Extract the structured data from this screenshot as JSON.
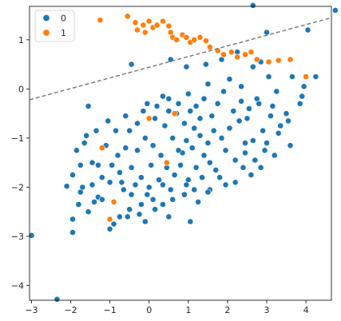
{
  "chart_data": {
    "type": "scatter",
    "title": "",
    "xlabel": "",
    "ylabel": "",
    "xlim": [
      -3.05,
      4.65
    ],
    "ylim": [
      -4.3,
      1.68
    ],
    "xticks": [
      -3,
      -2,
      -1,
      0,
      1,
      2,
      3,
      4
    ],
    "yticks": [
      -4,
      -3,
      -2,
      -1,
      0,
      1
    ],
    "xtick_labels": [
      "−3",
      "−2",
      "−1",
      "0",
      "1",
      "2",
      "3",
      "4"
    ],
    "ytick_labels": [
      "−4",
      "−3",
      "−2",
      "−1",
      "0",
      "1"
    ],
    "grid": false,
    "legend": {
      "location": "upper-left",
      "entries": [
        "0",
        "1"
      ]
    },
    "series": [
      {
        "name": "0",
        "color": "#1f77b4",
        "points": [
          [
            -3.0,
            -2.98
          ],
          [
            -2.35,
            -4.28
          ],
          [
            -1.95,
            -2.92
          ],
          [
            -1.95,
            -2.65
          ],
          [
            -2.1,
            -1.98
          ],
          [
            -1.8,
            -2.35
          ],
          [
            -1.75,
            -2.1
          ],
          [
            -1.55,
            -2.5
          ],
          [
            -1.4,
            -2.3
          ],
          [
            -1.3,
            -2.2
          ],
          [
            -1.2,
            -2.25
          ],
          [
            -1.0,
            -2.85
          ],
          [
            -0.9,
            -2.75
          ],
          [
            -0.75,
            -2.6
          ],
          [
            -0.55,
            -2.6
          ],
          [
            -0.1,
            -2.7
          ],
          [
            0.5,
            -2.6
          ],
          [
            1.05,
            -2.7
          ],
          [
            -1.95,
            -1.75
          ],
          [
            -1.85,
            -1.25
          ],
          [
            -1.65,
            -1.1
          ],
          [
            -1.6,
            -0.95
          ],
          [
            -1.45,
            -1.5
          ],
          [
            -1.3,
            -1.55
          ],
          [
            -1.55,
            -0.35
          ],
          [
            -1.35,
            -0.85
          ],
          [
            -1.05,
            -0.65
          ],
          [
            -0.6,
            -0.55
          ],
          [
            -1.75,
            -1.55
          ],
          [
            -1.2,
            -1.8
          ],
          [
            -0.95,
            -1.55
          ],
          [
            -0.75,
            -1.7
          ],
          [
            -1.0,
            -1.9
          ],
          [
            -1.1,
            -1.15
          ],
          [
            -0.85,
            -0.85
          ],
          [
            -0.5,
            -0.85
          ],
          [
            -1.7,
            -2.0
          ],
          [
            -1.45,
            -1.95
          ],
          [
            -0.65,
            -2.05
          ],
          [
            -0.45,
            -2.15
          ],
          [
            -0.2,
            -2.35
          ],
          [
            -0.05,
            -2.15
          ],
          [
            0.15,
            -2.45
          ],
          [
            0.35,
            -2.35
          ],
          [
            0.6,
            -2.25
          ],
          [
            0.9,
            -2.15
          ],
          [
            1.25,
            -2.3
          ],
          [
            1.55,
            -2.05
          ],
          [
            1.95,
            -1.95
          ],
          [
            2.2,
            -1.9
          ],
          [
            2.6,
            -1.75
          ],
          [
            2.85,
            -1.6
          ],
          [
            3.2,
            -1.35
          ],
          [
            3.6,
            -1.15
          ],
          [
            3.35,
            -0.75
          ],
          [
            3.85,
            -0.3
          ],
          [
            4.25,
            0.25
          ],
          [
            3.95,
            0.05
          ],
          [
            3.65,
            0.25
          ],
          [
            3.25,
            -0.05
          ],
          [
            3.05,
            0.25
          ],
          [
            2.85,
            0.55
          ],
          [
            2.65,
            0.45
          ],
          [
            2.25,
            0.75
          ],
          [
            1.85,
            0.6
          ],
          [
            1.45,
            0.5
          ],
          [
            0.95,
            0.45
          ],
          [
            0.55,
            0.6
          ],
          [
            4.05,
            1.2
          ],
          [
            4.75,
            1.6
          ],
          [
            2.65,
            1.7
          ],
          [
            3.0,
            1.15
          ],
          [
            -0.45,
            0.5
          ],
          [
            3.15,
            -0.35
          ],
          [
            3.5,
            -0.5
          ],
          [
            3.9,
            -0.15
          ],
          [
            2.45,
            -1.1
          ],
          [
            2.95,
            -1.25
          ],
          [
            0.5,
            -0.2
          ],
          [
            1.0,
            -0.1
          ],
          [
            1.5,
            0.1
          ],
          [
            2.05,
            0.2
          ],
          [
            2.35,
            0.05
          ],
          [
            2.75,
            -0.2
          ],
          [
            0.2,
            -0.35
          ],
          [
            -0.15,
            -0.45
          ],
          [
            0.7,
            -0.5
          ],
          [
            1.2,
            -0.35
          ],
          [
            1.75,
            -0.3
          ],
          [
            2.15,
            -0.45
          ],
          [
            0.95,
            -1.05
          ],
          [
            1.1,
            -1.2
          ],
          [
            0.85,
            -1.3
          ],
          [
            1.3,
            -0.95
          ],
          [
            1.5,
            -1.1
          ],
          [
            1.15,
            -0.8
          ],
          [
            0.6,
            -1.0
          ],
          [
            0.75,
            -1.25
          ],
          [
            1.4,
            -1.35
          ],
          [
            1.65,
            -0.85
          ],
          [
            0.4,
            -0.75
          ],
          [
            0.9,
            -0.7
          ],
          [
            1.85,
            -1.0
          ],
          [
            2.05,
            -0.8
          ],
          [
            2.3,
            -0.65
          ],
          [
            2.5,
            -0.6
          ],
          [
            1.95,
            -1.25
          ],
          [
            0.3,
            -1.35
          ],
          [
            0.1,
            -1.15
          ],
          [
            -0.1,
            -1.0
          ],
          [
            -0.3,
            -1.25
          ],
          [
            0.05,
            -1.55
          ],
          [
            0.45,
            -1.6
          ],
          [
            0.8,
            -1.55
          ],
          [
            1.2,
            -1.6
          ],
          [
            1.55,
            -1.5
          ],
          [
            -0.45,
            -1.6
          ],
          [
            -0.6,
            -1.2
          ],
          [
            -0.2,
            -1.8
          ],
          [
            0.25,
            -1.85
          ],
          [
            0.65,
            -1.75
          ],
          [
            1.0,
            -1.85
          ],
          [
            1.35,
            -1.8
          ],
          [
            1.7,
            -1.65
          ],
          [
            2.2,
            -1.45
          ],
          [
            2.45,
            -1.3
          ],
          [
            -0.8,
            -1.35
          ],
          [
            -0.35,
            -1.95
          ],
          [
            0.0,
            -2.0
          ],
          [
            0.55,
            -2.05
          ],
          [
            1.15,
            -2.05
          ],
          [
            1.8,
            -1.8
          ],
          [
            2.65,
            -1.05
          ],
          [
            2.9,
            -0.85
          ],
          [
            3.1,
            -0.55
          ],
          [
            2.8,
            -0.3
          ],
          [
            1.6,
            -0.55
          ],
          [
            1.3,
            -0.6
          ],
          [
            0.15,
            -0.6
          ],
          [
            -0.3,
            -0.7
          ],
          [
            0.5,
            -0.45
          ],
          [
            1.05,
            -0.45
          ],
          [
            -0.05,
            -0.3
          ],
          [
            0.35,
            -0.15
          ],
          [
            1.9,
            -0.05
          ],
          [
            2.35,
            -0.25
          ],
          [
            2.55,
            -0.4
          ],
          [
            1.4,
            -0.2
          ],
          [
            0.75,
            -0.3
          ],
          [
            -0.7,
            -1.9
          ],
          [
            -0.9,
            -2.3
          ],
          [
            -0.5,
            -2.45
          ],
          [
            -0.25,
            -2.55
          ],
          [
            0.1,
            -2.25
          ],
          [
            0.35,
            -1.95
          ],
          [
            0.95,
            -1.95
          ],
          [
            1.5,
            -2.1
          ],
          [
            2.4,
            -1.6
          ],
          [
            2.7,
            -1.45
          ],
          [
            3.0,
            -1.1
          ],
          [
            3.3,
            -0.9
          ],
          [
            3.55,
            -0.65
          ]
        ]
      },
      {
        "name": "1",
        "color": "#ff7f0e",
        "points": [
          [
            -1.25,
            1.4
          ],
          [
            -0.55,
            1.48
          ],
          [
            -0.35,
            1.35
          ],
          [
            -0.15,
            1.3
          ],
          [
            -0.3,
            1.2
          ],
          [
            -0.1,
            1.15
          ],
          [
            0.0,
            1.38
          ],
          [
            0.1,
            1.25
          ],
          [
            0.2,
            1.3
          ],
          [
            0.35,
            1.38
          ],
          [
            0.5,
            1.28
          ],
          [
            0.55,
            1.15
          ],
          [
            0.6,
            1.05
          ],
          [
            0.7,
            1.0
          ],
          [
            0.85,
            1.1
          ],
          [
            0.95,
            1.05
          ],
          [
            1.05,
            0.95
          ],
          [
            1.15,
            1.0
          ],
          [
            1.3,
            1.05
          ],
          [
            1.45,
            0.98
          ],
          [
            1.55,
            0.85
          ],
          [
            1.75,
            0.78
          ],
          [
            1.9,
            0.7
          ],
          [
            2.1,
            0.75
          ],
          [
            2.25,
            0.65
          ],
          [
            2.45,
            0.7
          ],
          [
            2.6,
            0.75
          ],
          [
            2.75,
            0.6
          ],
          [
            3.05,
            0.55
          ],
          [
            3.3,
            0.58
          ],
          [
            3.6,
            0.6
          ],
          [
            4.0,
            0.25
          ],
          [
            -1.2,
            -1.2
          ],
          [
            -0.9,
            -2.3
          ],
          [
            0.45,
            -1.5
          ],
          [
            0.65,
            -0.5
          ],
          [
            -1.0,
            -2.65
          ],
          [
            0.0,
            -0.6
          ]
        ]
      }
    ],
    "decision_boundary": {
      "style": "dashed",
      "color": "#808080",
      "points": [
        [
          -3.05,
          -0.22
        ],
        [
          4.65,
          1.45
        ]
      ]
    }
  }
}
